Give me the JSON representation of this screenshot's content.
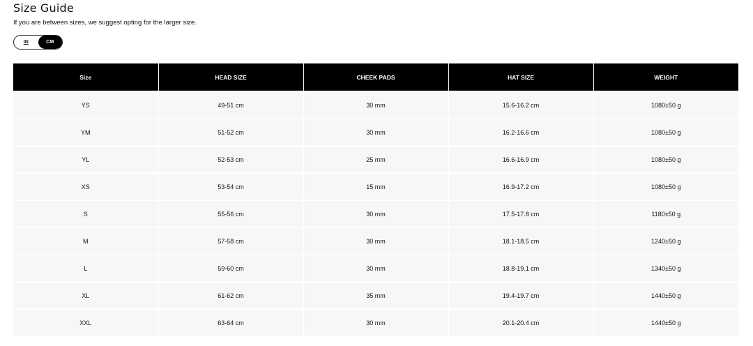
{
  "title": "Size Guide",
  "subtitle": "If you are between sizes, we suggest opting for the larger size.",
  "unit_toggle": {
    "options": [
      "IN",
      "CM"
    ],
    "selected": "CM"
  },
  "table": {
    "headers": [
      "Size",
      "HEAD SIZE",
      "CHEEK PADS",
      "HAT SIZE",
      "WEIGHT"
    ],
    "rows": [
      [
        "YS",
        "49-51 cm",
        "30 mm",
        "15.6-16.2 cm",
        "1080±50 g"
      ],
      [
        "YM",
        "51-52 cm",
        "30 mm",
        "16.2-16.6 cm",
        "1080±50 g"
      ],
      [
        "YL",
        "52-53 cm",
        "25 mm",
        "16.6-16.9 cm",
        "1080±50 g"
      ],
      [
        "XS",
        "53-54 cm",
        "15 mm",
        "16.9-17.2 cm",
        "1080±50 g"
      ],
      [
        "S",
        "55-56 cm",
        "30 mm",
        "17.5-17.8 cm",
        "1180±50 g"
      ],
      [
        "M",
        "57-58 cm",
        "30 mm",
        "18.1-18.5 cm",
        "1240±50 g"
      ],
      [
        "L",
        "59-60 cm",
        "30 mm",
        "18.8-19.1 cm",
        "1340±50 g"
      ],
      [
        "XL",
        "61-62 cm",
        "35 mm",
        "19.4-19.7 cm",
        "1440±50 g"
      ],
      [
        "XXL",
        "63-64 cm",
        "30 mm",
        "20.1-20.4 cm",
        "1440±50 g"
      ]
    ]
  }
}
